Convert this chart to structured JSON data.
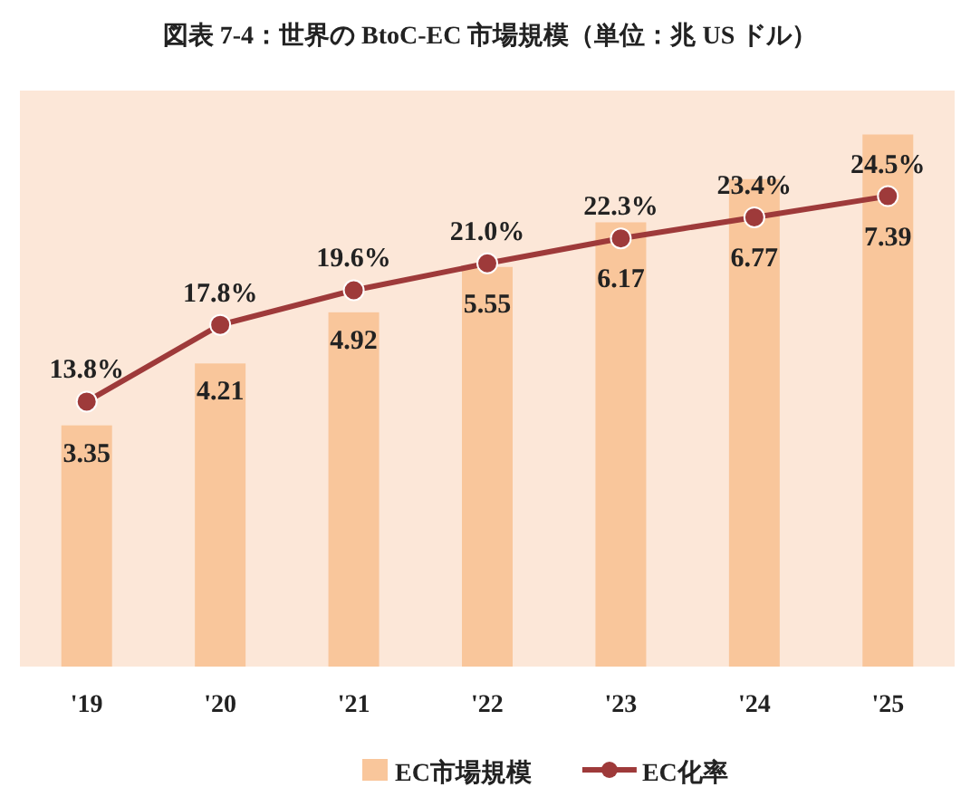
{
  "chart_data": {
    "type": "bar",
    "title": "図表 7-4：世界の BtoC-EC 市場規模（単位：兆 US ドル）",
    "categories": [
      "'19",
      "'20",
      "'21",
      "'22",
      "'23",
      "'24",
      "'25"
    ],
    "series": [
      {
        "name": "EC市場規模",
        "color": "#f9c69b",
        "values": [
          3.35,
          4.21,
          4.92,
          5.55,
          6.17,
          6.77,
          7.39
        ]
      },
      {
        "name": "EC化率",
        "type": "line",
        "axis": "y2",
        "color": "#9e3a3a",
        "marker": "circle",
        "values": [
          13.8,
          17.8,
          19.6,
          21.0,
          22.3,
          23.4,
          24.5
        ],
        "value_labels": [
          "13.8%",
          "17.8%",
          "19.6%",
          "21.0%",
          "22.3%",
          "23.4%",
          "24.5%"
        ]
      }
    ],
    "ylim": [
      0,
      8
    ],
    "y2lim": [
      0,
      30
    ],
    "data_labels": true,
    "legend": "bottom",
    "tick_labels": "x"
  }
}
